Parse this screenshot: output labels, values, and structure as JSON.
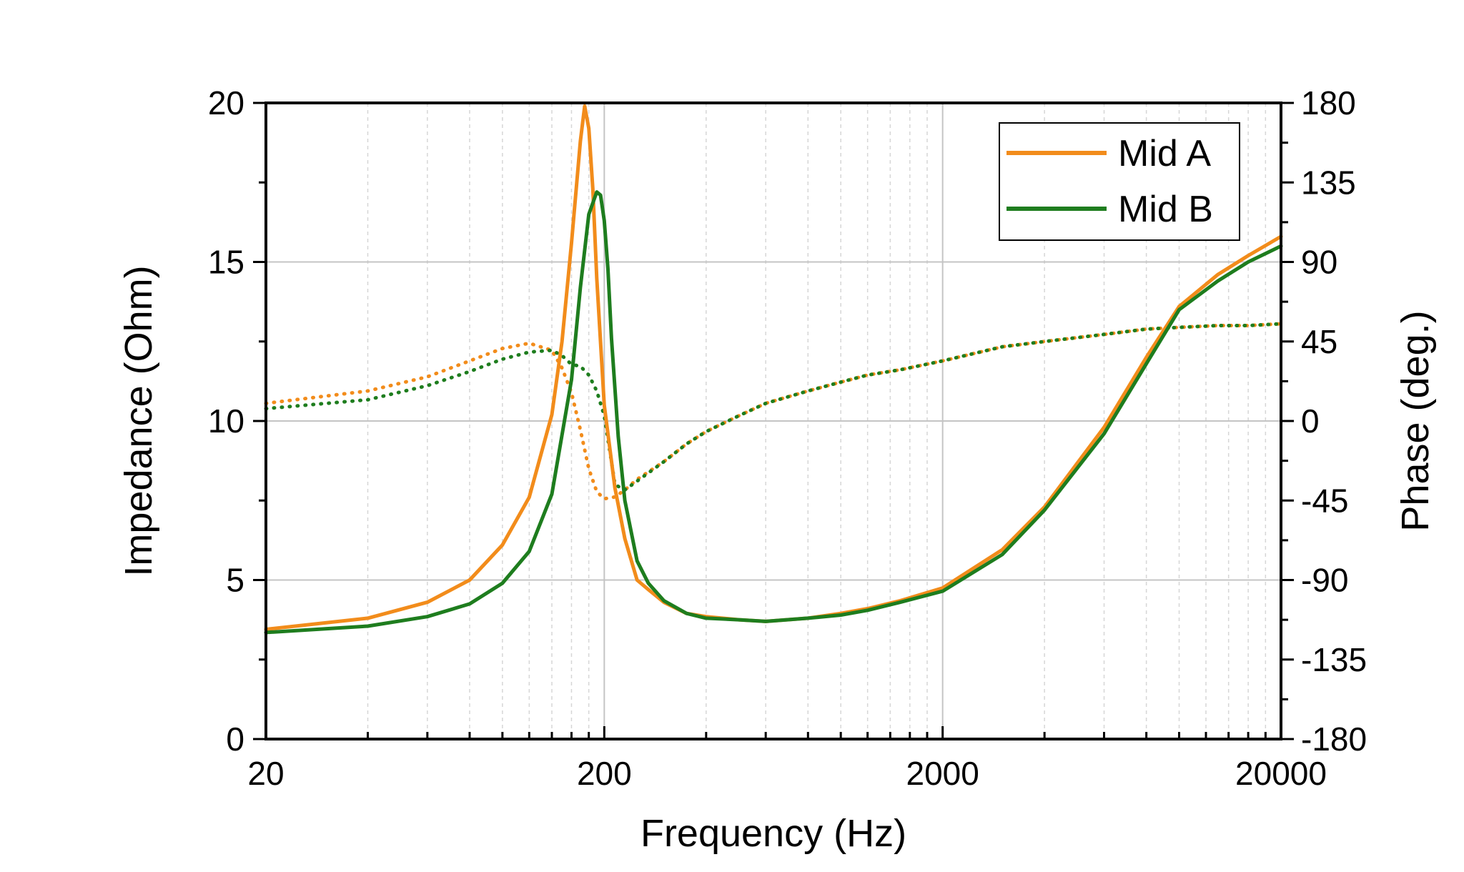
{
  "chart_data": {
    "type": "line",
    "xlabel": "Frequency (Hz)",
    "ylabel": "Impedance (Ohm)",
    "y2label": "Phase (deg.)",
    "xscale": "log",
    "xlim": [
      20,
      20000
    ],
    "ylim": [
      0,
      20
    ],
    "y2lim": [
      -180,
      180
    ],
    "xticks": [
      "20",
      "200",
      "2000",
      "20000"
    ],
    "yticks": [
      "0",
      "5",
      "10",
      "15",
      "20"
    ],
    "y2ticks": [
      "-180",
      "-135",
      "-90",
      "-45",
      "0",
      "45",
      "90",
      "135",
      "180"
    ],
    "grid": true,
    "legend_position": "top-right",
    "colors": {
      "mid_a": "#F28C1B",
      "mid_b": "#1E7D1E"
    },
    "series": [
      {
        "name": "Mid A",
        "kind": "impedance",
        "axis": "left",
        "style": "solid",
        "color": "#F28C1B",
        "x": [
          20,
          40,
          60,
          80,
          100,
          120,
          140,
          150,
          160,
          170,
          175,
          180,
          185,
          190,
          200,
          215,
          230,
          250,
          270,
          300,
          350,
          400,
          500,
          600,
          800,
          1000,
          1200,
          1500,
          2000,
          3000,
          4000,
          6000,
          8000,
          10000,
          13000,
          16000,
          20000
        ],
        "y": [
          3.45,
          3.8,
          4.3,
          5.0,
          6.1,
          7.6,
          10.2,
          12.5,
          15.6,
          18.8,
          19.9,
          19.2,
          17.3,
          14.5,
          10.5,
          7.9,
          6.3,
          5.0,
          4.7,
          4.3,
          3.95,
          3.85,
          3.75,
          3.7,
          3.8,
          3.95,
          4.1,
          4.35,
          4.75,
          5.95,
          7.3,
          9.8,
          12.0,
          13.6,
          14.6,
          15.2,
          15.8
        ]
      },
      {
        "name": "Mid B",
        "kind": "impedance",
        "axis": "left",
        "style": "solid",
        "color": "#1E7D1E",
        "x": [
          20,
          40,
          60,
          80,
          100,
          120,
          140,
          160,
          170,
          180,
          190,
          195,
          200,
          205,
          210,
          220,
          230,
          250,
          270,
          300,
          350,
          400,
          500,
          600,
          800,
          1000,
          1200,
          1500,
          2000,
          3000,
          4000,
          6000,
          8000,
          10000,
          13000,
          16000,
          20000
        ],
        "y": [
          3.35,
          3.55,
          3.85,
          4.25,
          4.9,
          5.9,
          7.7,
          11.3,
          14.2,
          16.5,
          17.2,
          17.1,
          16.3,
          14.8,
          12.6,
          9.5,
          7.5,
          5.6,
          4.9,
          4.35,
          3.95,
          3.8,
          3.75,
          3.7,
          3.8,
          3.9,
          4.05,
          4.3,
          4.65,
          5.8,
          7.2,
          9.6,
          11.8,
          13.5,
          14.4,
          15.0,
          15.5
        ]
      },
      {
        "name": "",
        "kind": "phase",
        "axis": "right",
        "style": "dotted",
        "color": "#F28C1B",
        "x": [
          20,
          40,
          60,
          80,
          100,
          120,
          140,
          150,
          160,
          170,
          180,
          190,
          200,
          215,
          230,
          250,
          300,
          350,
          400,
          500,
          600,
          800,
          1000,
          1200,
          1500,
          2000,
          3000,
          4000,
          6000,
          8000,
          10000,
          13000,
          16000,
          20000
        ],
        "y": [
          10,
          17,
          25,
          34,
          41,
          44,
          40,
          30,
          16,
          -5,
          -27,
          -40,
          -44,
          -43,
          -39,
          -33,
          -23,
          -13,
          -6,
          3,
          10,
          17,
          22,
          26,
          29,
          34,
          42,
          45,
          49,
          52,
          53,
          54,
          54,
          55
        ]
      },
      {
        "name": "",
        "kind": "phase",
        "axis": "right",
        "style": "dotted",
        "color": "#1E7D1E",
        "x": [
          20,
          40,
          60,
          80,
          100,
          120,
          140,
          150,
          160,
          170,
          180,
          190,
          200,
          210,
          215,
          230,
          250,
          300,
          350,
          400,
          500,
          600,
          800,
          1000,
          1200,
          1500,
          2000,
          3000,
          4000,
          6000,
          8000,
          10000,
          13000,
          16000,
          20000
        ],
        "y": [
          7,
          12,
          20,
          28,
          35,
          39,
          40,
          37,
          32,
          31,
          26,
          17,
          3,
          -23,
          -36,
          -39,
          -34,
          -23,
          -13,
          -6,
          3,
          10,
          17,
          22,
          26,
          29,
          34,
          42,
          45,
          49,
          52,
          53,
          54,
          54,
          55
        ]
      }
    ]
  }
}
